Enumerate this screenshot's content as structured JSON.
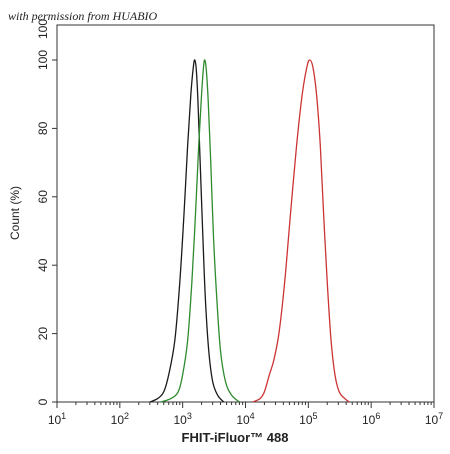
{
  "watermark": "with permission from HUABIO",
  "chart_data": {
    "type": "line",
    "title": "",
    "xlabel": "FHIT-iFluor™ 488",
    "ylabel": "Count  (%)",
    "x_scale": "log",
    "xlim": [
      10,
      10000000
    ],
    "ylim": [
      0,
      100
    ],
    "y_ticks": [
      0,
      20,
      40,
      60,
      80,
      100
    ],
    "y_ticks_extra_top": "100",
    "x_ticks": [
      {
        "base": "10",
        "exp": "1",
        "value": 10
      },
      {
        "base": "10",
        "exp": "2",
        "value": 100
      },
      {
        "base": "10",
        "exp": "3",
        "value": 1000
      },
      {
        "base": "10",
        "exp": "4",
        "value": 10000
      },
      {
        "base": "10",
        "exp": "5",
        "value": 100000
      },
      {
        "base": "10",
        "exp": "6",
        "value": 1000000
      },
      {
        "base": "10",
        "exp": "7",
        "value": 10000000
      }
    ],
    "grid": false,
    "series": [
      {
        "color": "#1a1a1a",
        "points": [
          [
            300,
            0
          ],
          [
            400,
            1
          ],
          [
            500,
            3
          ],
          [
            600,
            8
          ],
          [
            750,
            18
          ],
          [
            900,
            35
          ],
          [
            1050,
            55
          ],
          [
            1200,
            75
          ],
          [
            1350,
            90
          ],
          [
            1480,
            98
          ],
          [
            1560,
            100
          ],
          [
            1650,
            97
          ],
          [
            1750,
            88
          ],
          [
            1900,
            70
          ],
          [
            2100,
            48
          ],
          [
            2300,
            30
          ],
          [
            2600,
            15
          ],
          [
            3000,
            6
          ],
          [
            3600,
            2
          ],
          [
            4500,
            0
          ]
        ]
      },
      {
        "color": "#2e8b2e",
        "points": [
          [
            450,
            0
          ],
          [
            650,
            1
          ],
          [
            850,
            3
          ],
          [
            1000,
            8
          ],
          [
            1200,
            18
          ],
          [
            1400,
            35
          ],
          [
            1600,
            55
          ],
          [
            1800,
            75
          ],
          [
            2000,
            90
          ],
          [
            2150,
            98
          ],
          [
            2250,
            100
          ],
          [
            2380,
            97
          ],
          [
            2550,
            88
          ],
          [
            2800,
            70
          ],
          [
            3100,
            48
          ],
          [
            3500,
            30
          ],
          [
            4000,
            15
          ],
          [
            4800,
            6
          ],
          [
            6000,
            2
          ],
          [
            8000,
            0
          ]
        ]
      },
      {
        "color": "#cc3333",
        "points": [
          [
            13000,
            0
          ],
          [
            17000,
            1
          ],
          [
            20000,
            3
          ],
          [
            24000,
            8
          ],
          [
            28000,
            12
          ],
          [
            34000,
            20
          ],
          [
            42000,
            35
          ],
          [
            52000,
            55
          ],
          [
            65000,
            75
          ],
          [
            80000,
            90
          ],
          [
            95000,
            98
          ],
          [
            105000,
            100
          ],
          [
            118000,
            98
          ],
          [
            135000,
            90
          ],
          [
            155000,
            75
          ],
          [
            175000,
            55
          ],
          [
            200000,
            35
          ],
          [
            230000,
            18
          ],
          [
            265000,
            8
          ],
          [
            310000,
            3
          ],
          [
            380000,
            1
          ],
          [
            450000,
            0
          ]
        ]
      }
    ]
  }
}
